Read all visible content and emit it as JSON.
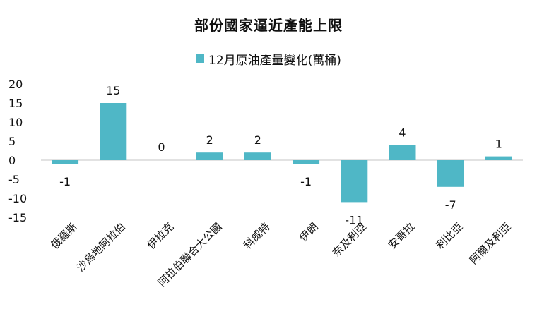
{
  "chart_data": {
    "type": "bar",
    "title": "部份國家逼近產能上限",
    "categories": [
      "俄羅斯",
      "沙烏地阿拉伯",
      "伊拉克",
      "阿拉伯聯合大公國",
      "科威特",
      "伊朗",
      "奈及利亞",
      "安哥拉",
      "利比亞",
      "阿爾及利亞"
    ],
    "series": [
      {
        "name": "12月原油產量變化(萬桶)",
        "values": [
          -1,
          15,
          0,
          2,
          2,
          -1,
          -11,
          4,
          -7,
          1
        ],
        "color": "#4fb7c6"
      }
    ],
    "data_labels": [
      "-1",
      "15",
      "0",
      "2",
      "2",
      "-1",
      "-11",
      "4",
      "-7",
      "1"
    ],
    "yticks": [
      20,
      15,
      10,
      5,
      0,
      -5,
      -10,
      -15
    ],
    "ylim": [
      -15,
      20
    ],
    "legend_position": "top",
    "grid": false,
    "axis_color": "#d9d9d9"
  }
}
